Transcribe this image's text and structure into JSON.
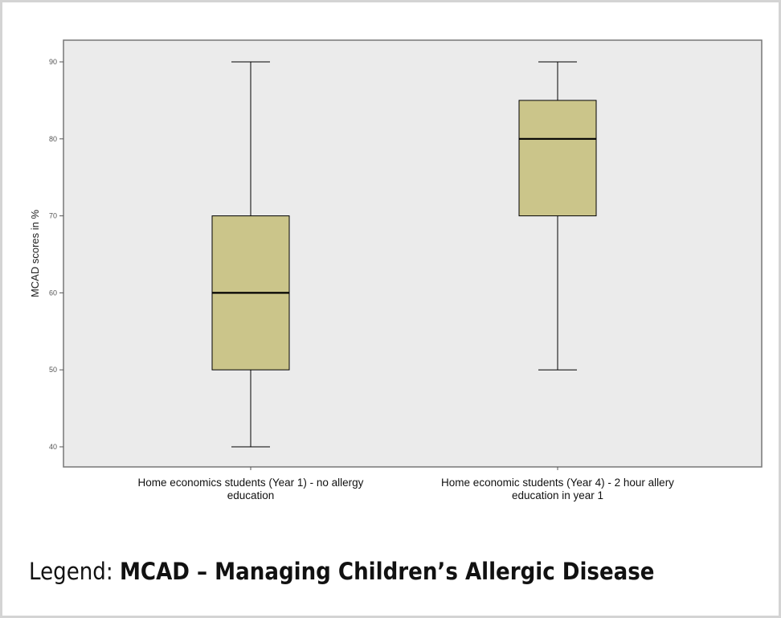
{
  "chart_data": {
    "type": "box",
    "title": "",
    "xlabel": "",
    "ylabel": "MCAD scores in %",
    "ylim": [
      38,
      93
    ],
    "yticks": [
      40,
      50,
      60,
      70,
      80,
      90
    ],
    "grid": false,
    "categories": [
      [
        "Home economics students (Year 1) - no allergy",
        "education"
      ],
      [
        "Home economic students (Year 4) - 2 hour allery",
        "education in year 1"
      ]
    ],
    "series": [
      {
        "name": "Year 1",
        "min": 40,
        "q1": 50,
        "median": 60,
        "q3": 70,
        "max": 90
      },
      {
        "name": "Year 4",
        "min": 50,
        "q1": 70,
        "median": 80,
        "q3": 85,
        "max": 90
      }
    ],
    "colors": {
      "box": "#cbc58a",
      "plot_bg": "#ebebeb",
      "line": "#000000"
    }
  },
  "legend": {
    "prefix": "Legend: ",
    "text": "MCAD – Managing Children’s Allergic Disease"
  }
}
